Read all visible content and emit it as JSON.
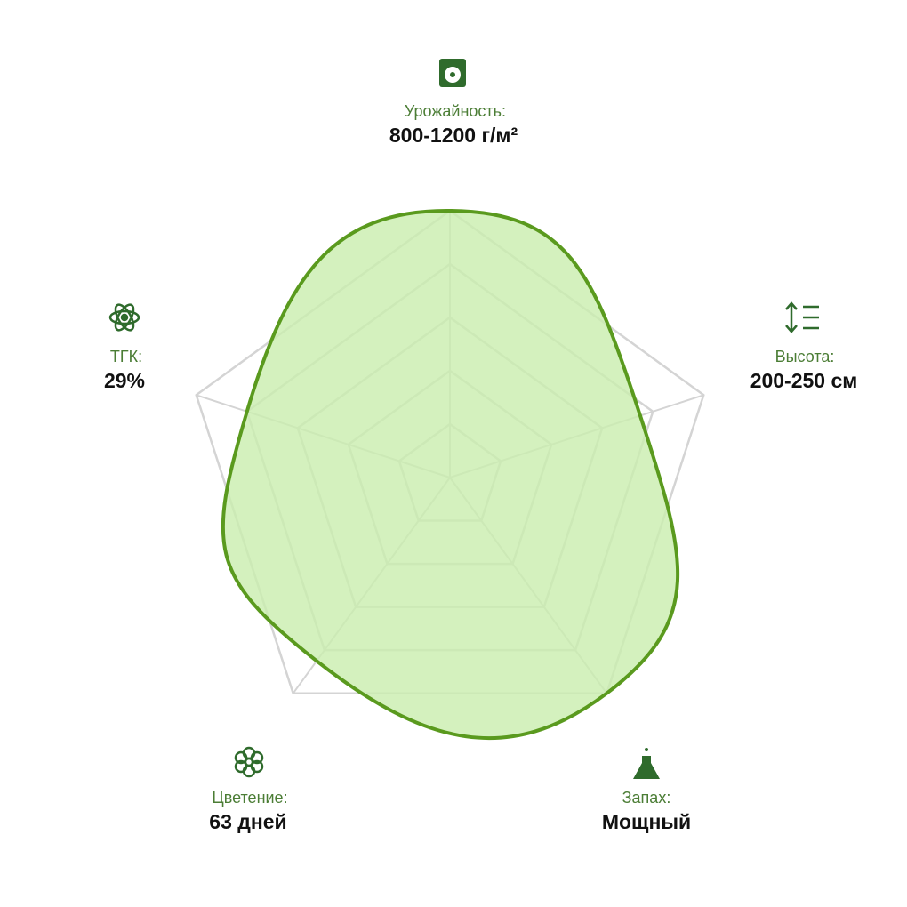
{
  "chart_data": {
    "type": "radar",
    "categories": [
      "Урожайность:",
      "Высота:",
      "Запах:",
      "Цветение:",
      "ТГК:"
    ],
    "details": [
      "800-1200 г/м²",
      "200-250 см",
      "Мощный",
      "63 дней",
      "29%"
    ],
    "values": [
      100,
      75,
      100,
      85,
      80
    ],
    "ylim": [
      0,
      100
    ],
    "yticks": [
      20,
      40,
      60,
      80,
      100
    ],
    "color": "#5a9a1e",
    "fill": "#c9eeae",
    "grid": true
  }
}
